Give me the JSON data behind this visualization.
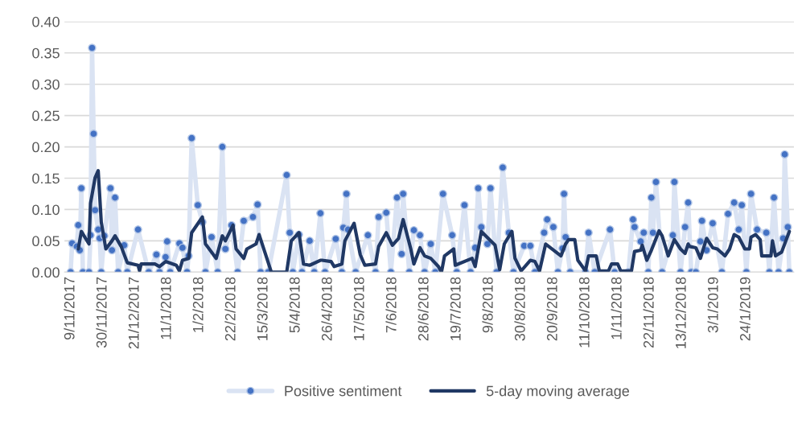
{
  "chart_data": {
    "type": "line",
    "xlim": [
      "2017-11-05",
      "2019-02-24"
    ],
    "xticks": [
      {
        "value": "2017-11-09",
        "label": "9/11/2017"
      },
      {
        "value": "2017-11-30",
        "label": "30/11/2017"
      },
      {
        "value": "2017-12-21",
        "label": "21/12/2017"
      },
      {
        "value": "2018-01-11",
        "label": "11/1/2018"
      },
      {
        "value": "2018-02-01",
        "label": "1/2/2018"
      },
      {
        "value": "2018-02-22",
        "label": "22/2/2018"
      },
      {
        "value": "2018-03-15",
        "label": "15/3/2018"
      },
      {
        "value": "2018-04-05",
        "label": "5/4/2018"
      },
      {
        "value": "2018-04-26",
        "label": "26/4/2018"
      },
      {
        "value": "2018-05-17",
        "label": "17/5/2018"
      },
      {
        "value": "2018-06-07",
        "label": "7/6/2018"
      },
      {
        "value": "2018-06-28",
        "label": "28/6/2018"
      },
      {
        "value": "2018-07-19",
        "label": "19/7/2018"
      },
      {
        "value": "2018-08-09",
        "label": "9/8/2018"
      },
      {
        "value": "2018-08-30",
        "label": "30/8/2018"
      },
      {
        "value": "2018-09-20",
        "label": "20/9/2018"
      },
      {
        "value": "2018-10-11",
        "label": "11/10/2018"
      },
      {
        "value": "2018-11-01",
        "label": "1/11/2018"
      },
      {
        "value": "2018-11-22",
        "label": "22/11/2018"
      },
      {
        "value": "2018-12-13",
        "label": "13/12/2018"
      },
      {
        "value": "2019-01-03",
        "label": "3/1/2019"
      },
      {
        "value": "2019-01-24",
        "label": "24/1/2019"
      }
    ],
    "ylim": [
      0,
      0.4
    ],
    "yticks": [
      {
        "value": 0,
        "label": "0.00"
      },
      {
        "value": 0.05,
        "label": "0.05"
      },
      {
        "value": 0.1,
        "label": "0.10"
      },
      {
        "value": 0.15,
        "label": "0.15"
      },
      {
        "value": 0.2,
        "label": "0.20"
      },
      {
        "value": 0.25,
        "label": "0.25"
      },
      {
        "value": 0.3,
        "label": "0.30"
      },
      {
        "value": 0.35,
        "label": "0.35"
      },
      {
        "value": 0.4,
        "label": "0.40"
      }
    ],
    "grid": "y",
    "legend": "bottom",
    "series": [
      {
        "name": "Positive sentiment",
        "color": "#4472c4",
        "marker": "circle",
        "x": [
          "2017-11-09",
          "2017-11-10",
          "2017-11-13",
          "2017-11-14",
          "2017-11-15",
          "2017-11-16",
          "2017-11-17",
          "2017-11-21",
          "2017-11-22",
          "2017-11-23",
          "2017-11-24",
          "2017-11-25",
          "2017-11-27",
          "2017-11-28",
          "2017-11-29",
          "2017-12-01",
          "2017-12-05",
          "2017-12-06",
          "2017-12-08",
          "2017-12-10",
          "2017-12-14",
          "2017-12-16",
          "2017-12-23",
          "2017-12-30",
          "2018-01-04",
          "2018-01-06",
          "2018-01-10",
          "2018-01-11",
          "2018-01-13",
          "2018-01-19",
          "2018-01-21",
          "2018-01-24",
          "2018-01-25",
          "2018-01-27",
          "2018-01-31",
          "2018-02-03",
          "2018-02-05",
          "2018-02-09",
          "2018-02-13",
          "2018-02-16",
          "2018-02-18",
          "2018-02-22",
          "2018-02-26",
          "2018-03-02",
          "2018-03-08",
          "2018-03-11",
          "2018-03-13",
          "2018-03-18",
          "2018-03-30",
          "2018-04-01",
          "2018-04-03",
          "2018-04-07",
          "2018-04-09",
          "2018-04-14",
          "2018-04-17",
          "2018-04-21",
          "2018-04-24",
          "2018-05-01",
          "2018-05-05",
          "2018-05-06",
          "2018-05-08",
          "2018-05-09",
          "2018-05-14",
          "2018-05-22",
          "2018-05-27",
          "2018-05-29",
          "2018-06-03",
          "2018-06-06",
          "2018-06-10",
          "2018-06-13",
          "2018-06-14",
          "2018-06-18",
          "2018-06-21",
          "2018-06-25",
          "2018-06-28",
          "2018-07-02",
          "2018-07-05",
          "2018-07-10",
          "2018-07-16",
          "2018-07-19",
          "2018-07-24",
          "2018-07-28",
          "2018-07-31",
          "2018-08-02",
          "2018-08-04",
          "2018-08-08",
          "2018-08-10",
          "2018-08-14",
          "2018-08-18",
          "2018-08-22",
          "2018-08-25",
          "2018-09-01",
          "2018-09-05",
          "2018-09-08",
          "2018-09-14",
          "2018-09-16",
          "2018-09-20",
          "2018-09-23",
          "2018-09-26",
          "2018-09-27",
          "2018-09-28",
          "2018-10-01",
          "2018-10-11",
          "2018-10-13",
          "2018-10-17",
          "2018-10-27",
          "2018-10-30",
          "2018-11-08",
          "2018-11-11",
          "2018-11-12",
          "2018-11-16",
          "2018-11-18",
          "2018-11-21",
          "2018-11-23",
          "2018-11-24",
          "2018-11-26",
          "2018-11-30",
          "2018-12-07",
          "2018-12-08",
          "2018-12-12",
          "2018-12-15",
          "2018-12-17",
          "2018-12-19",
          "2018-12-22",
          "2018-12-25",
          "2018-12-26",
          "2018-12-29",
          "2019-01-02",
          "2019-01-08",
          "2019-01-12",
          "2019-01-16",
          "2019-01-19",
          "2019-01-21",
          "2019-01-24",
          "2019-01-27",
          "2019-01-31",
          "2019-02-06",
          "2019-02-08",
          "2019-02-11",
          "2019-02-14",
          "2019-02-17",
          "2019-02-18",
          "2019-02-20",
          "2019-02-21"
        ],
        "values": [
          0,
          0.046,
          0.041,
          0.075,
          0.035,
          0.134,
          0,
          0,
          0.059,
          0.358,
          0.221,
          0.099,
          0.068,
          0.054,
          0,
          0.058,
          0.134,
          0.035,
          0.119,
          0,
          0.043,
          0,
          0.068,
          0,
          0.028,
          0,
          0.024,
          0.049,
          0,
          0.046,
          0.039,
          0,
          0.026,
          0.214,
          0.107,
          0.08,
          0,
          0.056,
          0,
          0.2,
          0.037,
          0.075,
          0,
          0.082,
          0.088,
          0.108,
          0,
          0,
          0.155,
          0.063,
          0,
          0.06,
          0,
          0.05,
          0,
          0.094,
          0,
          0.053,
          0,
          0.071,
          0.125,
          0.068,
          0,
          0.059,
          0,
          0.088,
          0.095,
          0,
          0.119,
          0.029,
          0.125,
          0,
          0.067,
          0.059,
          0,
          0.045,
          0,
          0.125,
          0.059,
          0,
          0.107,
          0,
          0.039,
          0.134,
          0.072,
          0.045,
          0.134,
          0,
          0.167,
          0.063,
          0,
          0.042,
          0.042,
          0,
          0.063,
          0.084,
          0.072,
          0,
          0.038,
          0.125,
          0.056,
          0,
          0,
          0.063,
          0,
          0.068,
          0,
          0,
          0.084,
          0.072,
          0.049,
          0.063,
          0,
          0.119,
          0.063,
          0.144,
          0,
          0.059,
          0.144,
          0,
          0.072,
          0.111,
          0,
          0,
          0.049,
          0.082,
          0.035,
          0.078,
          0,
          0.093,
          0.111,
          0.068,
          0.107,
          0,
          0.125,
          0.068,
          0.063,
          0,
          0.119,
          0,
          0.054,
          0.188,
          0.072,
          0
        ]
      },
      {
        "name": "5-day moving average",
        "color": "#203864",
        "marker": "none",
        "x": [
          "2017-11-14",
          "2017-11-16",
          "2017-11-21",
          "2017-11-22",
          "2017-11-25",
          "2017-11-27",
          "2017-11-29",
          "2017-12-02",
          "2017-12-06",
          "2017-12-08",
          "2017-12-12",
          "2017-12-16",
          "2017-12-23",
          "2017-12-24",
          "2017-12-25",
          "2018-01-03",
          "2018-01-06",
          "2018-01-10",
          "2018-01-17",
          "2018-01-19",
          "2018-01-21",
          "2018-01-25",
          "2018-01-27",
          "2018-02-03",
          "2018-02-05",
          "2018-02-09",
          "2018-02-12",
          "2018-02-16",
          "2018-02-18",
          "2018-02-23",
          "2018-02-25",
          "2018-03-02",
          "2018-03-04",
          "2018-03-10",
          "2018-03-12",
          "2018-03-16",
          "2018-03-20",
          "2018-03-30",
          "2018-04-02",
          "2018-04-07",
          "2018-04-10",
          "2018-04-14",
          "2018-04-21",
          "2018-04-22",
          "2018-04-28",
          "2018-04-30",
          "2018-05-05",
          "2018-05-07",
          "2018-05-13",
          "2018-05-17",
          "2018-05-20",
          "2018-05-27",
          "2018-05-29",
          "2018-06-03",
          "2018-06-07",
          "2018-06-11",
          "2018-06-14",
          "2018-06-19",
          "2018-06-21",
          "2018-06-25",
          "2018-06-28",
          "2018-07-02",
          "2018-07-07",
          "2018-07-09",
          "2018-07-11",
          "2018-07-17",
          "2018-07-18",
          "2018-07-29",
          "2018-07-31",
          "2018-08-04",
          "2018-08-13",
          "2018-08-16",
          "2018-08-19",
          "2018-08-24",
          "2018-08-26",
          "2018-08-30",
          "2018-09-05",
          "2018-09-08",
          "2018-09-11",
          "2018-09-15",
          "2018-09-25",
          "2018-09-28",
          "2018-09-30",
          "2018-10-04",
          "2018-10-06",
          "2018-10-11",
          "2018-10-13",
          "2018-10-18",
          "2018-10-20",
          "2018-10-26",
          "2018-10-28",
          "2018-11-01",
          "2018-11-03",
          "2018-11-10",
          "2018-11-12",
          "2018-11-16",
          "2018-11-17",
          "2018-11-20",
          "2018-11-23",
          "2018-11-28",
          "2018-11-30",
          "2018-12-04",
          "2018-12-08",
          "2018-12-12",
          "2018-12-15",
          "2018-12-17",
          "2018-12-18",
          "2018-12-22",
          "2018-12-25",
          "2018-12-29",
          "2019-01-02",
          "2019-01-05",
          "2019-01-10",
          "2019-01-13",
          "2019-01-16",
          "2019-01-19",
          "2019-01-23",
          "2019-01-26",
          "2019-01-27",
          "2019-01-30",
          "2019-02-02",
          "2019-02-03",
          "2019-02-09",
          "2019-02-10",
          "2019-02-12",
          "2019-02-16",
          "2019-02-21"
        ],
        "values": [
          0.037,
          0.065,
          0.045,
          0.11,
          0.151,
          0.162,
          0.08,
          0.037,
          0.05,
          0.058,
          0.041,
          0.015,
          0.011,
          0.002,
          0.013,
          0.013,
          0.009,
          0.017,
          0.011,
          0.002,
          0.019,
          0.022,
          0.063,
          0.088,
          0.045,
          0.032,
          0.022,
          0.058,
          0.05,
          0.075,
          0.037,
          0.022,
          0.037,
          0.045,
          0.06,
          0.03,
          0,
          0,
          0.05,
          0.063,
          0.013,
          0.011,
          0.019,
          0.019,
          0.017,
          0.009,
          0.013,
          0.05,
          0.078,
          0.028,
          0.011,
          0.013,
          0.041,
          0.063,
          0.043,
          0.054,
          0.084,
          0.037,
          0.013,
          0.039,
          0.026,
          0.022,
          0.009,
          0,
          0.026,
          0.037,
          0.011,
          0.022,
          0.009,
          0.065,
          0.043,
          0.004,
          0.045,
          0.065,
          0.022,
          0.002,
          0.019,
          0.017,
          0.002,
          0.045,
          0.026,
          0.045,
          0.052,
          0.052,
          0.019,
          0.002,
          0.026,
          0.026,
          0.002,
          0.002,
          0.013,
          0.013,
          0.002,
          0.002,
          0.033,
          0.035,
          0.043,
          0.019,
          0.035,
          0.066,
          0.058,
          0.026,
          0.052,
          0.037,
          0.03,
          0.045,
          0.041,
          0.039,
          0.022,
          0.054,
          0.039,
          0.037,
          0.026,
          0.037,
          0.06,
          0.056,
          0.037,
          0.037,
          0.056,
          0.06,
          0.052,
          0.026,
          0.026,
          0.05,
          0.026,
          0.032,
          0.065
        ]
      }
    ]
  }
}
